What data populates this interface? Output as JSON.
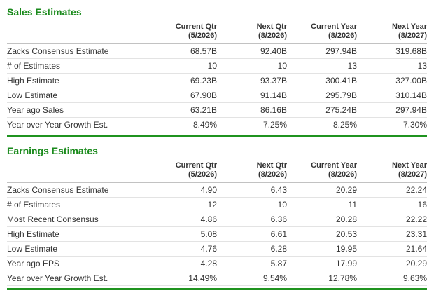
{
  "colors": {
    "accent_green": "#1a8a1c",
    "rule_green": "#1f931f",
    "text": "#333333",
    "header_border": "#c2c2c2",
    "row_border": "#e3e3e3",
    "background": "#ffffff"
  },
  "sales": {
    "title": "Sales Estimates",
    "columns": [
      {
        "period": "Current Qtr",
        "date": "(5/2026)"
      },
      {
        "period": "Next Qtr",
        "date": "(8/2026)"
      },
      {
        "period": "Current Year",
        "date": "(8/2026)"
      },
      {
        "period": "Next Year",
        "date": "(8/2027)"
      }
    ],
    "rows": [
      {
        "label": "Zacks Consensus Estimate",
        "values": [
          "68.57B",
          "92.40B",
          "297.94B",
          "319.68B"
        ]
      },
      {
        "label": "# of Estimates",
        "values": [
          "10",
          "10",
          "13",
          "13"
        ]
      },
      {
        "label": "High Estimate",
        "values": [
          "69.23B",
          "93.37B",
          "300.41B",
          "327.00B"
        ]
      },
      {
        "label": "Low Estimate",
        "values": [
          "67.90B",
          "91.14B",
          "295.79B",
          "310.14B"
        ]
      },
      {
        "label": "Year ago Sales",
        "values": [
          "63.21B",
          "86.16B",
          "275.24B",
          "297.94B"
        ]
      },
      {
        "label": "Year over Year Growth Est.",
        "values": [
          "8.49%",
          "7.25%",
          "8.25%",
          "7.30%"
        ]
      }
    ]
  },
  "earnings": {
    "title": "Earnings Estimates",
    "columns": [
      {
        "period": "Current Qtr",
        "date": "(5/2026)"
      },
      {
        "period": "Next Qtr",
        "date": "(8/2026)"
      },
      {
        "period": "Current Year",
        "date": "(8/2026)"
      },
      {
        "period": "Next Year",
        "date": "(8/2027)"
      }
    ],
    "rows": [
      {
        "label": "Zacks Consensus Estimate",
        "values": [
          "4.90",
          "6.43",
          "20.29",
          "22.24"
        ]
      },
      {
        "label": "# of Estimates",
        "values": [
          "12",
          "10",
          "11",
          "16"
        ]
      },
      {
        "label": "Most Recent Consensus",
        "values": [
          "4.86",
          "6.36",
          "20.28",
          "22.22"
        ]
      },
      {
        "label": "High Estimate",
        "values": [
          "5.08",
          "6.61",
          "20.53",
          "23.31"
        ]
      },
      {
        "label": "Low Estimate",
        "values": [
          "4.76",
          "6.28",
          "19.95",
          "21.64"
        ]
      },
      {
        "label": "Year ago EPS",
        "values": [
          "4.28",
          "5.87",
          "17.99",
          "20.29"
        ]
      },
      {
        "label": "Year over Year Growth Est.",
        "values": [
          "14.49%",
          "9.54%",
          "12.78%",
          "9.63%"
        ]
      }
    ]
  }
}
